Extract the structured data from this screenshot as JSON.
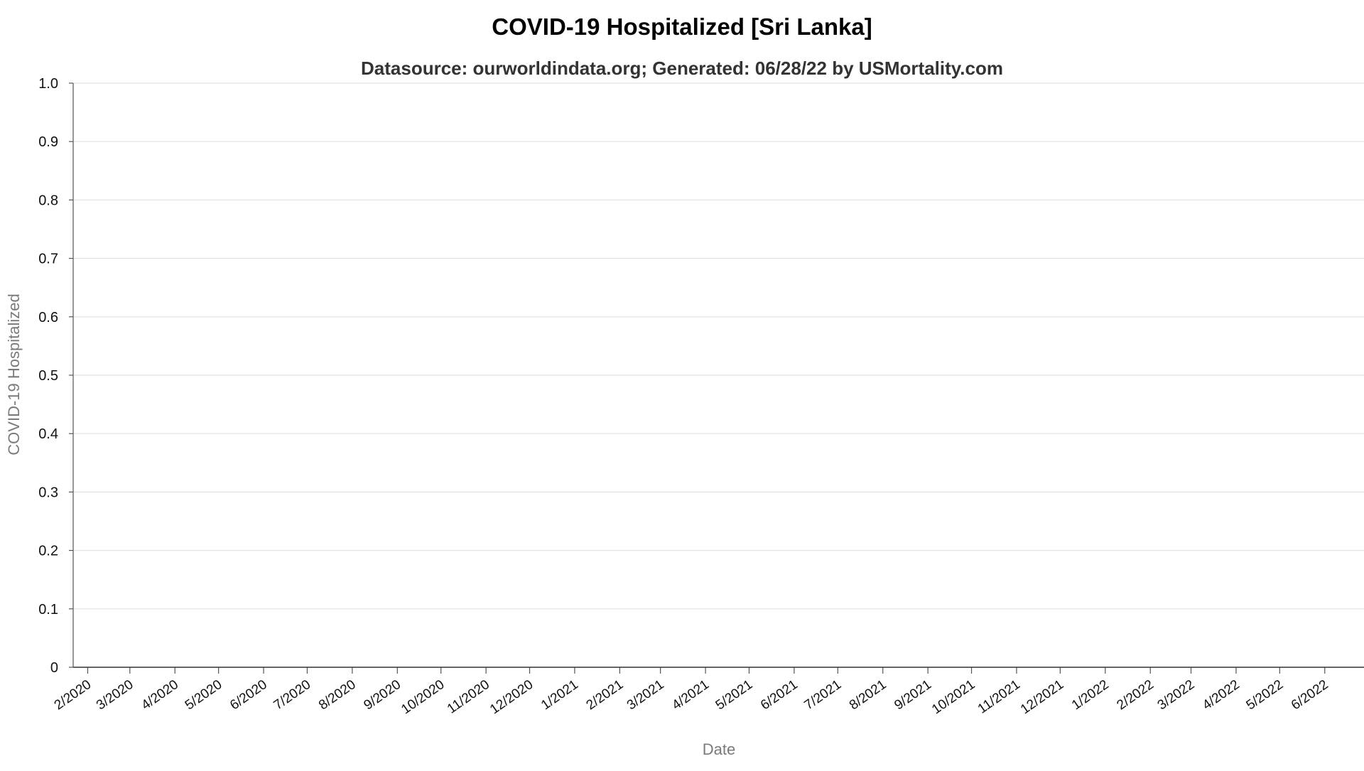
{
  "chart_data": {
    "type": "line",
    "title": "COVID-19 Hospitalized [Sri Lanka]",
    "subtitle": "Datasource: ourworldindata.org; Generated: 06/28/22 by USMortality.com",
    "xlabel": "Date",
    "ylabel": "COVID-19 Hospitalized",
    "ylim": [
      0,
      1.0
    ],
    "yticks": [
      "0",
      "0.1",
      "0.2",
      "0.3",
      "0.4",
      "0.5",
      "0.6",
      "0.7",
      "0.8",
      "0.9",
      "1.0"
    ],
    "xlim": [
      "2020-01-22",
      "2022-06-28"
    ],
    "xticks": [
      {
        "label": "2/2020",
        "date": "2020-02-01"
      },
      {
        "label": "3/2020",
        "date": "2020-03-01"
      },
      {
        "label": "4/2020",
        "date": "2020-04-01"
      },
      {
        "label": "5/2020",
        "date": "2020-05-01"
      },
      {
        "label": "6/2020",
        "date": "2020-06-01"
      },
      {
        "label": "7/2020",
        "date": "2020-07-01"
      },
      {
        "label": "8/2020",
        "date": "2020-08-01"
      },
      {
        "label": "9/2020",
        "date": "2020-09-01"
      },
      {
        "label": "10/2020",
        "date": "2020-10-01"
      },
      {
        "label": "11/2020",
        "date": "2020-11-01"
      },
      {
        "label": "12/2020",
        "date": "2020-12-01"
      },
      {
        "label": "1/2021",
        "date": "2021-01-01"
      },
      {
        "label": "2/2021",
        "date": "2021-02-01"
      },
      {
        "label": "3/2021",
        "date": "2021-03-01"
      },
      {
        "label": "4/2021",
        "date": "2021-04-01"
      },
      {
        "label": "5/2021",
        "date": "2021-05-01"
      },
      {
        "label": "6/2021",
        "date": "2021-06-01"
      },
      {
        "label": "7/2021",
        "date": "2021-07-01"
      },
      {
        "label": "8/2021",
        "date": "2021-08-01"
      },
      {
        "label": "9/2021",
        "date": "2021-09-01"
      },
      {
        "label": "10/2021",
        "date": "2021-10-01"
      },
      {
        "label": "11/2021",
        "date": "2021-11-01"
      },
      {
        "label": "12/2021",
        "date": "2021-12-01"
      },
      {
        "label": "1/2022",
        "date": "2022-01-01"
      },
      {
        "label": "2/2022",
        "date": "2022-02-01"
      },
      {
        "label": "3/2022",
        "date": "2022-03-01"
      },
      {
        "label": "4/2022",
        "date": "2022-04-01"
      },
      {
        "label": "5/2022",
        "date": "2022-05-01"
      },
      {
        "label": "6/2022",
        "date": "2022-06-01"
      }
    ],
    "grid": true,
    "series": [
      {
        "color": "#1f77b4",
        "x": [],
        "y": []
      }
    ]
  }
}
